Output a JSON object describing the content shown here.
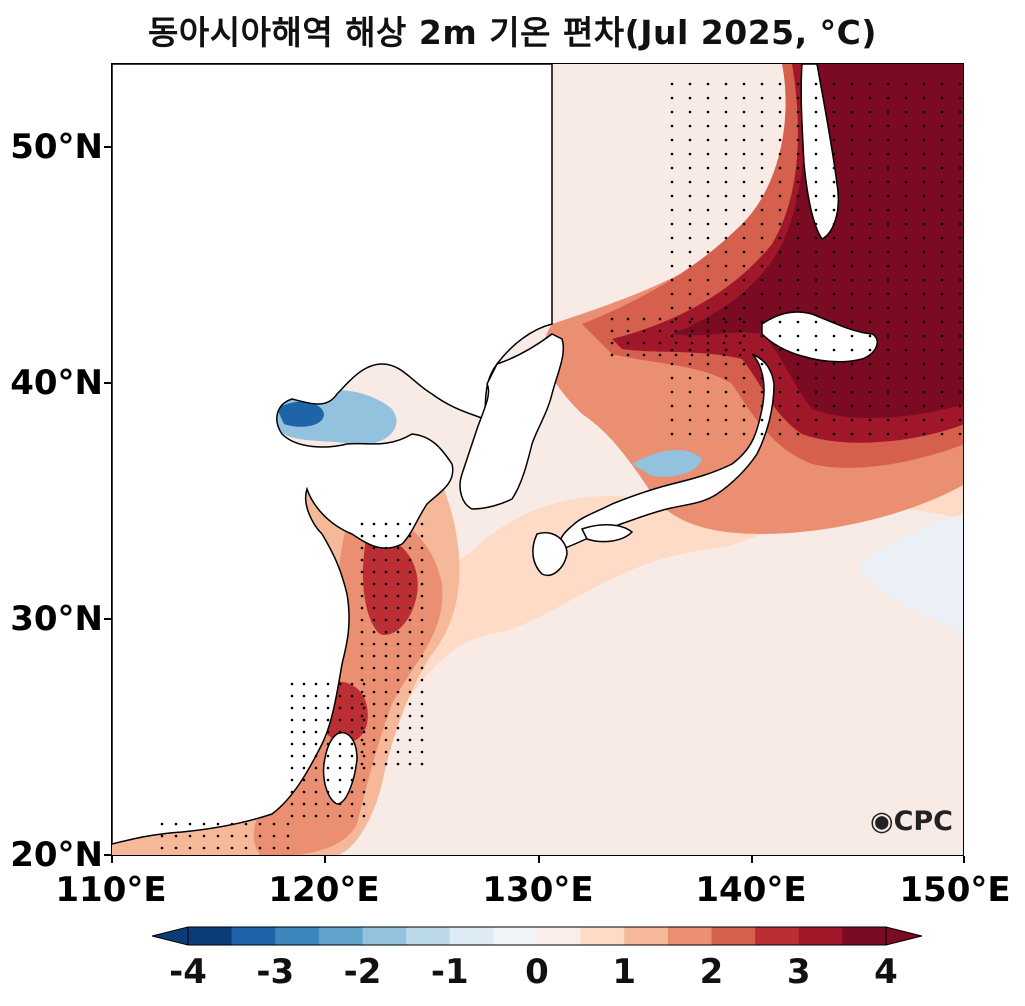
{
  "title": "동아시아해역 해상 2m 기온 편차(Jul 2025, °C)",
  "map": {
    "region": "East Asia seas",
    "variable": "2m air temperature anomaly",
    "period": "Jul 2025",
    "unit": "°C",
    "lon_range": [
      110,
      150
    ],
    "lat_range": [
      20,
      53.5
    ],
    "x_ticks": [
      "110°E",
      "120°E",
      "130°E",
      "140°E",
      "150°E"
    ],
    "y_ticks": [
      "50°N",
      "40°N",
      "30°N",
      "20°N"
    ],
    "stippling": "dots mark significant anomalies"
  },
  "colorbar": {
    "tick_labels": [
      "-4",
      "-3",
      "-2",
      "-1",
      "0",
      "1",
      "2",
      "3",
      "4"
    ],
    "colors": [
      "#0b3c78",
      "#1f63a8",
      "#3b86bd",
      "#62a3cc",
      "#92c2de",
      "#bcd9ea",
      "#dcebf4",
      "#f0f4f8",
      "#fbeee8",
      "#fddbc7",
      "#f5b898",
      "#ea8f72",
      "#d5604d",
      "#bb2e33",
      "#a0172a",
      "#7a0b22"
    ],
    "extend": "both"
  },
  "logo": {
    "text": "CPC"
  }
}
